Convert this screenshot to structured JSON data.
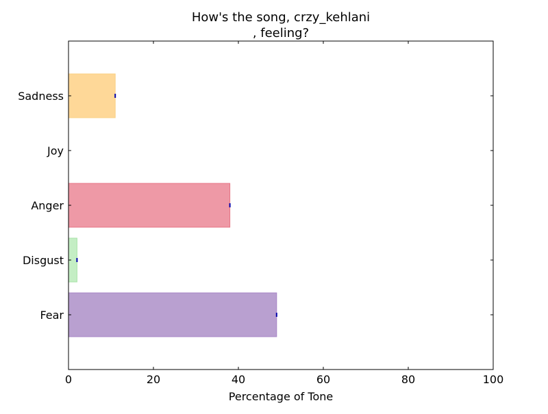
{
  "chart_data": {
    "type": "bar",
    "orientation": "horizontal",
    "title_lines": [
      "How's the song, crzy_kehlani",
      ", feeling?"
    ],
    "xlabel": "Percentage of Tone",
    "ylabel": "",
    "xlim": [
      0,
      100
    ],
    "xticks": [
      0,
      20,
      40,
      60,
      80,
      100
    ],
    "categories": [
      "Fear",
      "Disgust",
      "Anger",
      "Joy",
      "Sadness"
    ],
    "values": [
      49,
      2,
      38,
      0,
      11
    ],
    "colors": [
      "#b9a0d0",
      "#c4eec4",
      "#ee99a6",
      "#ffffff",
      "#fed898"
    ],
    "edge_colors": [
      "#a683c6",
      "#a8e3a8",
      "#e57384",
      "#ffffff",
      "#f9cf82"
    ],
    "error_marker_color": "#0000aa",
    "grid": false,
    "legend": "none"
  }
}
